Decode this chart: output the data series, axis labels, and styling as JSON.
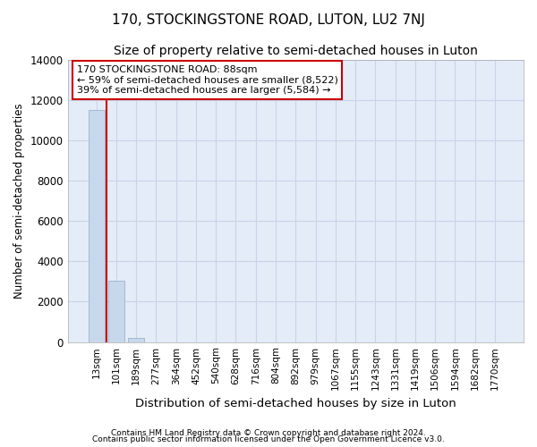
{
  "title": "170, STOCKINGSTONE ROAD, LUTON, LU2 7NJ",
  "subtitle": "Size of property relative to semi-detached houses in Luton",
  "xlabel": "Distribution of semi-detached houses by size in Luton",
  "ylabel": "Number of semi-detached properties",
  "categories": [
    "13sqm",
    "101sqm",
    "189sqm",
    "277sqm",
    "364sqm",
    "452sqm",
    "540sqm",
    "628sqm",
    "716sqm",
    "804sqm",
    "892sqm",
    "979sqm",
    "1067sqm",
    "1155sqm",
    "1243sqm",
    "1331sqm",
    "1419sqm",
    "1506sqm",
    "1594sqm",
    "1682sqm",
    "1770sqm"
  ],
  "values": [
    11500,
    3020,
    200,
    0,
    0,
    0,
    0,
    0,
    0,
    0,
    0,
    0,
    0,
    0,
    0,
    0,
    0,
    0,
    0,
    0,
    0
  ],
  "bar_color": "#c8d8ec",
  "bar_edge_color": "#9ab4cc",
  "ylim": [
    0,
    14000
  ],
  "yticks": [
    0,
    2000,
    4000,
    6000,
    8000,
    10000,
    12000,
    14000
  ],
  "annotation_line": "170 STOCKINGSTONE ROAD: 88sqm",
  "annotation_smaller": "← 59% of semi-detached houses are smaller (8,522)",
  "annotation_larger": "39% of semi-detached houses are larger (5,584) →",
  "annotation_box_color": "#ffffff",
  "annotation_box_edge": "#cc0000",
  "vline_color": "#cc0000",
  "grid_color": "#c8d4e8",
  "bg_color": "#e4ecf8",
  "footnote1": "Contains HM Land Registry data © Crown copyright and database right 2024.",
  "footnote2": "Contains public sector information licensed under the Open Government Licence v3.0.",
  "title_fontsize": 11,
  "subtitle_fontsize": 10
}
